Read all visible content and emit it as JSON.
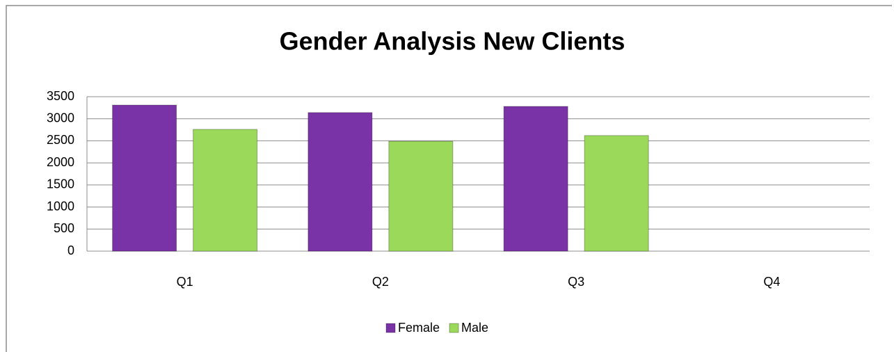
{
  "chart_data": {
    "type": "bar",
    "title": "Gender Analysis New Clients",
    "categories": [
      "Q1",
      "Q2",
      "Q3",
      "Q4"
    ],
    "series": [
      {
        "name": "Female",
        "color": "#7a33a6",
        "values": [
          3310,
          3140,
          3280,
          null
        ]
      },
      {
        "name": "Male",
        "color": "#9bd95a",
        "values": [
          2760,
          2490,
          2620,
          null
        ]
      }
    ],
    "ylim": [
      0,
      3500
    ],
    "yticks": [
      0,
      500,
      1000,
      1500,
      2000,
      2500,
      3000,
      3500
    ],
    "grid": true,
    "legend": "bottom"
  }
}
